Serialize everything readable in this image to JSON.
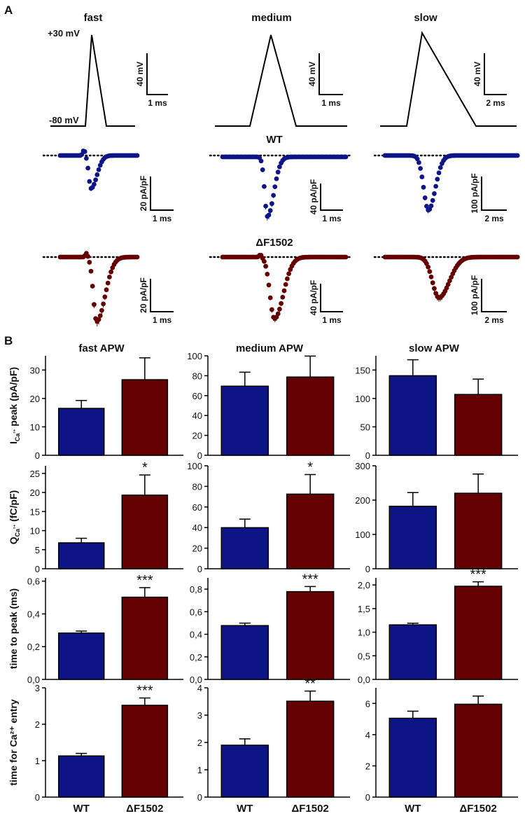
{
  "colors": {
    "wt": "#0d1486",
    "mut": "#640000",
    "axis": "#000000"
  },
  "panel_labels": {
    "a": "A",
    "b": "B"
  },
  "panel_a": {
    "column_titles": [
      "fast",
      "medium",
      "slow"
    ],
    "voltage_labels": {
      "top": "+30 mV",
      "bottom": "-80 mV"
    },
    "row_labels": {
      "wt": "WT",
      "mut": "ΔF1502"
    },
    "scalebars": {
      "voltage": [
        {
          "y": "40 mV",
          "x": "1 ms"
        },
        {
          "y": "40 mV",
          "x": "1 ms"
        },
        {
          "y": "40 mV",
          "x": "2 ms"
        }
      ],
      "wt": [
        {
          "y": "20 pA/pF",
          "x": "1 ms"
        },
        {
          "y": "40 pA/pF",
          "x": "1 ms"
        },
        {
          "y": "100 pA/pF",
          "x": "2 ms"
        }
      ],
      "mut": [
        {
          "y": "20 pA/pF",
          "x": "1 ms"
        },
        {
          "y": "40 pA/pF",
          "x": "1 ms"
        },
        {
          "y": "100 pA/pF",
          "x": "2 ms"
        }
      ]
    }
  },
  "chart_data": {
    "type": "bar",
    "categories": [
      "WT",
      "ΔF1502"
    ],
    "column_titles": [
      "fast APW",
      "medium APW",
      "slow APW"
    ],
    "rows": [
      {
        "ylabel": "I_Ca²⁺ peak (pA/pF)",
        "charts": [
          {
            "ylim": [
              0,
              35
            ],
            "ticks": [
              "0",
              "10",
              "20",
              "30"
            ],
            "values": [
              16.5,
              26.6
            ],
            "errors": [
              2.8,
              7.7
            ],
            "sig": [
              "",
              ""
            ]
          },
          {
            "ylim": [
              0,
              100
            ],
            "ticks": [
              "0",
              "20",
              "40",
              "60",
              "80",
              "100"
            ],
            "values": [
              69.5,
              78.7
            ],
            "errors": [
              14.0,
              21.0
            ],
            "sig": [
              "",
              ""
            ]
          },
          {
            "ylim": [
              0,
              175
            ],
            "ticks": [
              "0",
              "50",
              "100",
              "150"
            ],
            "values": [
              140,
              107
            ],
            "errors": [
              28,
              27
            ],
            "sig": [
              "",
              ""
            ]
          }
        ]
      },
      {
        "ylabel": "Q_Ca²⁺ (fC/pF)",
        "charts": [
          {
            "ylim": [
              0,
              27
            ],
            "ticks": [
              "0",
              "5",
              "10",
              "15",
              "20",
              "25"
            ],
            "values": [
              6.8,
              19.3
            ],
            "errors": [
              1.2,
              5.3
            ],
            "sig": [
              "",
              "*"
            ]
          },
          {
            "ylim": [
              0,
              100
            ],
            "ticks": [
              "0",
              "20",
              "40",
              "60",
              "80",
              "100"
            ],
            "values": [
              39.9,
              72.5
            ],
            "errors": [
              8.3,
              19.0
            ],
            "sig": [
              "",
              "*"
            ]
          },
          {
            "ylim": [
              0,
              300
            ],
            "ticks": [
              "0",
              "100",
              "200",
              "300"
            ],
            "values": [
              182,
              220
            ],
            "errors": [
              40,
              56
            ],
            "sig": [
              "",
              ""
            ]
          }
        ]
      },
      {
        "ylabel": "time to peak (ms)",
        "charts": [
          {
            "ylim": [
              0,
              0.62
            ],
            "ticks": [
              "0,0",
              "0,2",
              "0,4",
              "0,6"
            ],
            "values": [
              0.283,
              0.502
            ],
            "errors": [
              0.012,
              0.058
            ],
            "sig": [
              "",
              "***"
            ]
          },
          {
            "ylim": [
              0,
              0.9
            ],
            "ticks": [
              "0,0",
              "0,2",
              "0,4",
              "0,6",
              "0,8"
            ],
            "values": [
              0.477,
              0.778
            ],
            "errors": [
              0.022,
              0.045
            ],
            "sig": [
              "",
              "***"
            ]
          },
          {
            "ylim": [
              0,
              2.15
            ],
            "ticks": [
              "0,0",
              "0,5",
              "1,0",
              "1,5",
              "2,0"
            ],
            "values": [
              1.155,
              1.972
            ],
            "errors": [
              0.035,
              0.094
            ],
            "sig": [
              "",
              "***"
            ]
          }
        ]
      },
      {
        "ylabel": "time for Ca²⁺ entry",
        "charts": [
          {
            "ylim": [
              0,
              3
            ],
            "ticks": [
              "0",
              "1",
              "2",
              "3"
            ],
            "values": [
              1.13,
              2.52
            ],
            "errors": [
              0.07,
              0.2
            ],
            "sig": [
              "",
              "***"
            ]
          },
          {
            "ylim": [
              0,
              4
            ],
            "ticks": [
              "0",
              "1",
              "2",
              "3",
              "4"
            ],
            "values": [
              1.9,
              3.51
            ],
            "errors": [
              0.23,
              0.37
            ],
            "sig": [
              "",
              "**"
            ]
          },
          {
            "ylim": [
              0,
              7
            ],
            "ticks": [
              "0",
              "2",
              "4",
              "6"
            ],
            "values": [
              5.05,
              5.95
            ],
            "errors": [
              0.45,
              0.52
            ],
            "sig": [
              "",
              ""
            ]
          }
        ]
      }
    ]
  }
}
